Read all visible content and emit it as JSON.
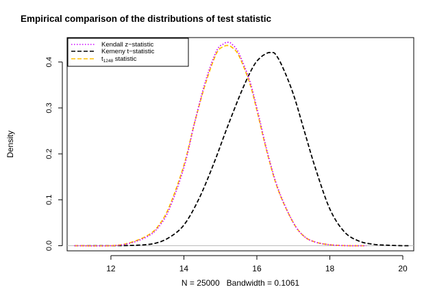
{
  "chart_data": {
    "type": "line",
    "title": "Empirical comparison of the distributions of test statistic",
    "xlabel": "N = 25000   Bandwidth = 0.1061",
    "ylabel": "Density",
    "xlim": [
      10.8,
      20.3
    ],
    "ylim": [
      -0.0112,
      0.4532
    ],
    "xticks": [
      12,
      14,
      16,
      18,
      20
    ],
    "yticks": [
      0.0,
      0.1,
      0.2,
      0.3,
      0.4
    ],
    "xtick_labels": [
      "12",
      "14",
      "16",
      "18",
      "20"
    ],
    "ytick_labels": [
      "0.0",
      "0.1",
      "0.2",
      "0.3",
      "0.4"
    ],
    "baseline_y": 0,
    "legend": {
      "position": "top-left",
      "entries": [
        {
          "label": "Kendall z−statistic",
          "color": "#cc00ff",
          "dash": "dotted"
        },
        {
          "label": "Kemeny t−statistic",
          "color": "#000000",
          "dash": "dashed"
        },
        {
          "label_main": "t",
          "label_sub": "1248",
          "label_rest": " statistic",
          "color": "#ffc000",
          "dash": "dashed"
        }
      ]
    },
    "series": [
      {
        "name": "Kendall z-statistic",
        "color": "#cc00ff",
        "dash": "dotted",
        "x": [
          11.0,
          12.0,
          12.5,
          13.0,
          13.3,
          13.6,
          14.0,
          14.3,
          14.6,
          14.9,
          15.1,
          15.2,
          15.3,
          15.5,
          15.8,
          16.0,
          16.3,
          16.6,
          17.0,
          17.3,
          17.6,
          18.0,
          18.5,
          19.0
        ],
        "y": [
          0.0,
          0.0,
          0.005,
          0.02,
          0.04,
          0.08,
          0.17,
          0.27,
          0.36,
          0.425,
          0.44,
          0.443,
          0.44,
          0.42,
          0.36,
          0.3,
          0.2,
          0.12,
          0.05,
          0.02,
          0.008,
          0.002,
          0.0,
          0.0
        ]
      },
      {
        "name": "Kemeny t-statistic",
        "color": "#000000",
        "dash": "dashed",
        "x": [
          11.0,
          12.0,
          12.7,
          13.2,
          13.6,
          14.0,
          14.4,
          14.8,
          15.2,
          15.6,
          15.9,
          16.1,
          16.3,
          16.4,
          16.5,
          16.7,
          17.0,
          17.3,
          17.6,
          18.0,
          18.4,
          18.8,
          19.2,
          19.6,
          20.0,
          20.2
        ],
        "y": [
          0.0,
          0.0,
          0.001,
          0.005,
          0.018,
          0.045,
          0.1,
          0.175,
          0.26,
          0.34,
          0.39,
          0.41,
          0.42,
          0.42,
          0.418,
          0.39,
          0.33,
          0.25,
          0.17,
          0.08,
          0.03,
          0.01,
          0.003,
          0.001,
          0.0,
          0.0
        ]
      },
      {
        "name": "t1248 statistic",
        "color": "#ffc000",
        "dash": "dashed",
        "x": [
          11.0,
          12.0,
          12.5,
          13.0,
          13.3,
          13.6,
          14.0,
          14.3,
          14.6,
          14.9,
          15.1,
          15.2,
          15.3,
          15.5,
          15.8,
          16.0,
          16.3,
          16.6,
          17.0,
          17.3,
          17.6,
          18.0,
          18.5,
          19.0
        ],
        "y": [
          0.0,
          0.0,
          0.006,
          0.022,
          0.043,
          0.085,
          0.175,
          0.27,
          0.355,
          0.42,
          0.434,
          0.436,
          0.433,
          0.415,
          0.355,
          0.295,
          0.197,
          0.118,
          0.05,
          0.02,
          0.008,
          0.002,
          0.0,
          0.0
        ]
      }
    ]
  }
}
